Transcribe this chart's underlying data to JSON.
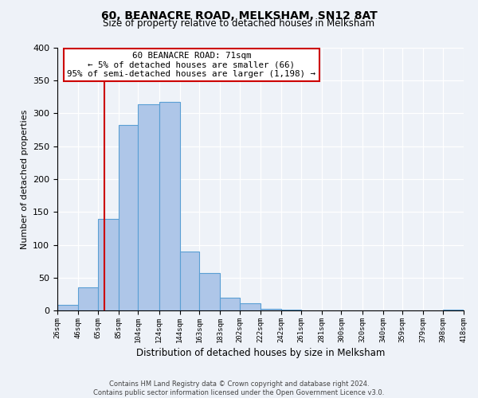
{
  "title": "60, BEANACRE ROAD, MELKSHAM, SN12 8AT",
  "subtitle": "Size of property relative to detached houses in Melksham",
  "xlabel": "Distribution of detached houses by size in Melksham",
  "ylabel": "Number of detached properties",
  "bin_labels": [
    "26sqm",
    "46sqm",
    "65sqm",
    "85sqm",
    "104sqm",
    "124sqm",
    "144sqm",
    "163sqm",
    "183sqm",
    "202sqm",
    "222sqm",
    "242sqm",
    "261sqm",
    "281sqm",
    "300sqm",
    "320sqm",
    "340sqm",
    "359sqm",
    "379sqm",
    "398sqm",
    "418sqm"
  ],
  "bar_values": [
    8,
    35,
    140,
    283,
    314,
    317,
    90,
    57,
    20,
    11,
    3,
    1,
    0,
    0,
    0,
    0,
    0,
    0,
    0,
    1
  ],
  "bar_color": "#aec6e8",
  "bar_edge_color": "#5a9fd4",
  "vline_x": 71,
  "vline_color": "#cc0000",
  "ylim": [
    0,
    400
  ],
  "yticks": [
    0,
    50,
    100,
    150,
    200,
    250,
    300,
    350,
    400
  ],
  "annotation_text": "60 BEANACRE ROAD: 71sqm\n← 5% of detached houses are smaller (66)\n95% of semi-detached houses are larger (1,198) →",
  "annotation_box_color": "#ffffff",
  "annotation_box_edge": "#cc0000",
  "footer_line1": "Contains HM Land Registry data © Crown copyright and database right 2024.",
  "footer_line2": "Contains public sector information licensed under the Open Government Licence v3.0.",
  "bg_color": "#eef2f8",
  "plot_bg_color": "#eef2f8",
  "bin_edges": [
    26,
    46,
    65,
    85,
    104,
    124,
    144,
    163,
    183,
    202,
    222,
    242,
    261,
    281,
    300,
    320,
    340,
    359,
    379,
    398,
    418
  ]
}
